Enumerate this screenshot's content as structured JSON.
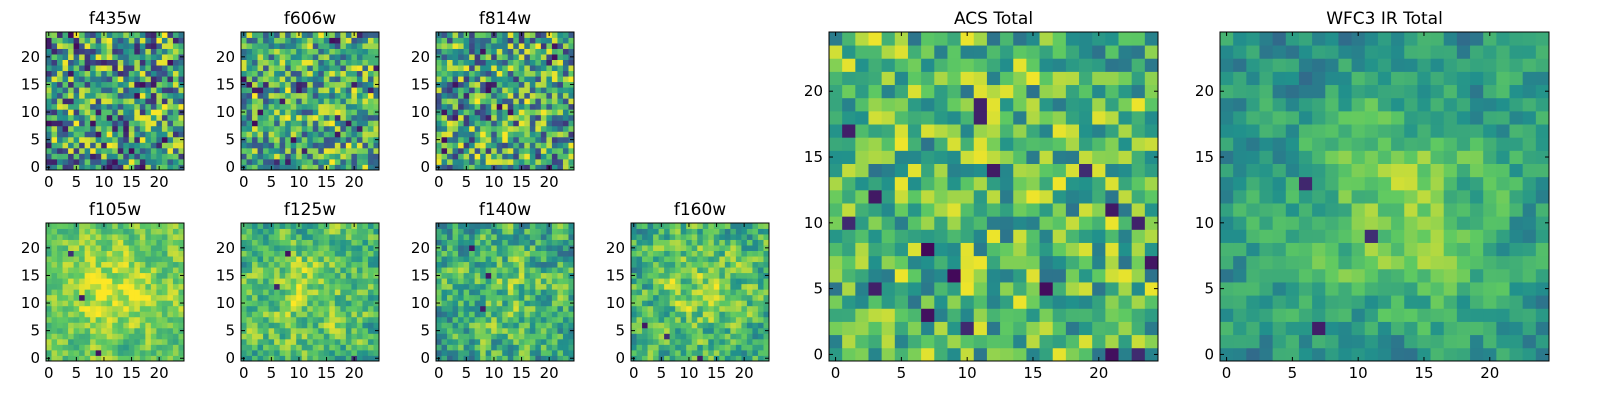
{
  "chart_data": [
    {
      "type": "heatmap",
      "title": "f435w",
      "grid": false,
      "xticks": [
        0,
        5,
        10,
        15,
        20
      ],
      "yticks": [
        0,
        5,
        10,
        15,
        20
      ],
      "xlim": [
        -0.5,
        24.5
      ],
      "ylim": [
        -0.5,
        24.5
      ],
      "size": 25,
      "seed": 11,
      "mean": 0.55,
      "noise": 0.45,
      "smooth": 0,
      "dark": 0.05,
      "blob": null
    },
    {
      "type": "heatmap",
      "title": "f606w",
      "grid": false,
      "xticks": [
        0,
        5,
        10,
        15,
        20
      ],
      "yticks": [
        0,
        5,
        10,
        15,
        20
      ],
      "xlim": [
        -0.5,
        24.5
      ],
      "ylim": [
        -0.5,
        24.5
      ],
      "size": 25,
      "seed": 23,
      "mean": 0.62,
      "noise": 0.38,
      "smooth": 0,
      "dark": 0.03,
      "blob": null
    },
    {
      "type": "heatmap",
      "title": "f814w",
      "grid": false,
      "xticks": [
        0,
        5,
        10,
        15,
        20
      ],
      "yticks": [
        0,
        5,
        10,
        15,
        20
      ],
      "xlim": [
        -0.5,
        24.5
      ],
      "ylim": [
        -0.5,
        24.5
      ],
      "size": 25,
      "seed": 37,
      "mean": 0.58,
      "noise": 0.42,
      "smooth": 0,
      "dark": 0.03,
      "blob": null
    },
    {
      "type": "heatmap",
      "title": "f105w",
      "grid": false,
      "xticks": [
        0,
        5,
        10,
        15,
        20
      ],
      "yticks": [
        0,
        5,
        10,
        15,
        20
      ],
      "xlim": [
        -0.5,
        24.5
      ],
      "ylim": [
        -0.5,
        24.5
      ],
      "size": 25,
      "seed": 41,
      "mean": 0.72,
      "noise": 0.28,
      "smooth": 0.5,
      "dark": 0.0,
      "blob": {
        "cx": 12,
        "cy": 12,
        "r": 9,
        "amp": 0.18
      }
    },
    {
      "type": "heatmap",
      "title": "f125w",
      "grid": false,
      "xticks": [
        0,
        5,
        10,
        15,
        20
      ],
      "yticks": [
        0,
        5,
        10,
        15,
        20
      ],
      "xlim": [
        -0.5,
        24.5
      ],
      "ylim": [
        -0.5,
        24.5
      ],
      "size": 25,
      "seed": 53,
      "mean": 0.66,
      "noise": 0.32,
      "smooth": 0.4,
      "dark": 0.0,
      "blob": {
        "cx": 12,
        "cy": 12,
        "r": 9,
        "amp": 0.14
      }
    },
    {
      "type": "heatmap",
      "title": "f140w",
      "grid": false,
      "xticks": [
        0,
        5,
        10,
        15,
        20
      ],
      "yticks": [
        0,
        5,
        10,
        15,
        20
      ],
      "xlim": [
        -0.5,
        24.5
      ],
      "ylim": [
        -0.5,
        24.5
      ],
      "size": 25,
      "seed": 67,
      "mean": 0.6,
      "noise": 0.36,
      "smooth": 0.4,
      "dark": 0.0,
      "blob": {
        "cx": 12,
        "cy": 12,
        "r": 9,
        "amp": 0.12
      }
    },
    {
      "type": "heatmap",
      "title": "f160w",
      "grid": false,
      "xticks": [
        0,
        5,
        10,
        15,
        20
      ],
      "yticks": [
        0,
        5,
        10,
        15,
        20
      ],
      "xlim": [
        -0.5,
        24.5
      ],
      "ylim": [
        -0.5,
        24.5
      ],
      "size": 25,
      "seed": 71,
      "mean": 0.62,
      "noise": 0.34,
      "smooth": 0.4,
      "dark": 0.0,
      "blob": {
        "cx": 12,
        "cy": 13,
        "r": 9,
        "amp": 0.16
      }
    },
    {
      "type": "heatmap",
      "title": "ACS Total",
      "grid": false,
      "xticks": [
        0,
        5,
        10,
        15,
        20
      ],
      "yticks": [
        0,
        5,
        10,
        15,
        20
      ],
      "xlim": [
        -0.5,
        24.5
      ],
      "ylim": [
        -0.5,
        24.5
      ],
      "size": 25,
      "seed": 83,
      "mean": 0.68,
      "noise": 0.3,
      "smooth": 0,
      "dark": 0.03,
      "blob": null
    },
    {
      "type": "heatmap",
      "title": "WFC3 IR Total",
      "grid": false,
      "xticks": [
        0,
        5,
        10,
        15,
        20
      ],
      "yticks": [
        0,
        5,
        10,
        15,
        20
      ],
      "xlim": [
        -0.5,
        24.5
      ],
      "ylim": [
        -0.5,
        24.5
      ],
      "size": 25,
      "seed": 97,
      "mean": 0.5,
      "noise": 0.26,
      "smooth": 0.5,
      "dark": 0.0,
      "blob": {
        "cx": 13,
        "cy": 11,
        "r": 8,
        "amp": 0.3
      }
    }
  ],
  "colormap": {
    "name": "viridis",
    "stops": [
      "#440154",
      "#3b528b",
      "#21918c",
      "#5ec962",
      "#fde725"
    ]
  }
}
